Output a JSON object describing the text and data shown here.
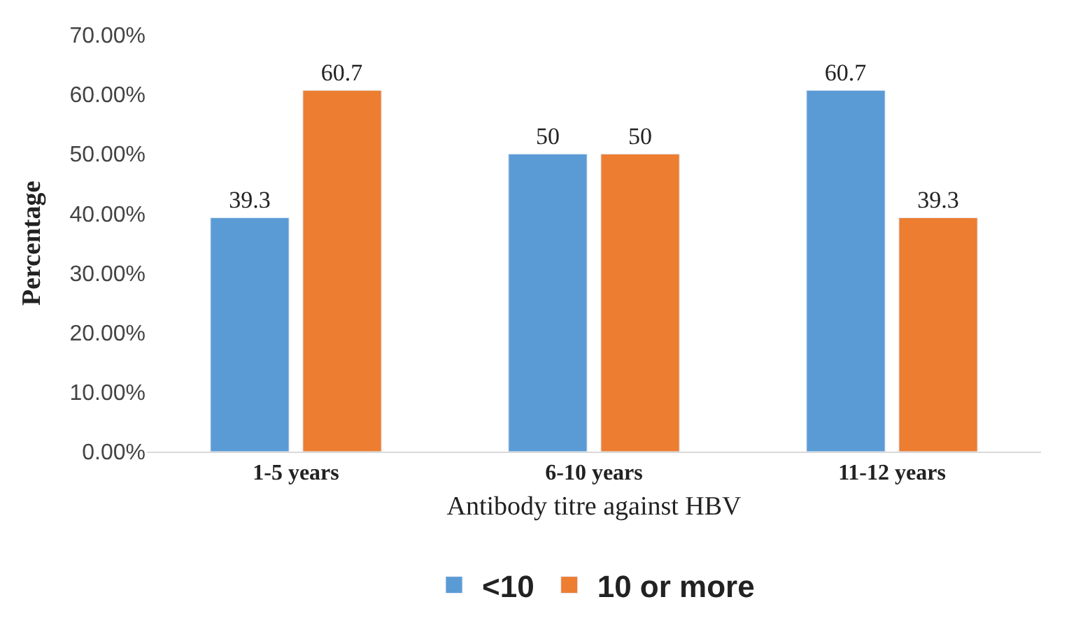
{
  "chart_data": {
    "type": "bar",
    "xlabel": "Antibody titre against HBV",
    "ylabel": "Percentage",
    "categories": [
      "1-5 years",
      "6-10 years",
      "11-12 years"
    ],
    "series": [
      {
        "name": "<10",
        "color": "#5b9bd5",
        "values": [
          39.3,
          50,
          60.7
        ]
      },
      {
        "name": "10 or more",
        "color": "#ed7d31",
        "values": [
          60.7,
          50,
          39.3
        ]
      }
    ],
    "ylim": [
      0,
      70
    ],
    "yticks": [
      {
        "value": 0,
        "label": "0.00%"
      },
      {
        "value": 10,
        "label": "10.00%"
      },
      {
        "value": 20,
        "label": "20.00%"
      },
      {
        "value": 30,
        "label": "30.00%"
      },
      {
        "value": 40,
        "label": "40.00%"
      },
      {
        "value": 50,
        "label": "50.00%"
      },
      {
        "value": 60,
        "label": "60.00%"
      },
      {
        "value": 70,
        "label": "70.00%"
      }
    ],
    "data_labels": true,
    "legend": "bottom"
  }
}
